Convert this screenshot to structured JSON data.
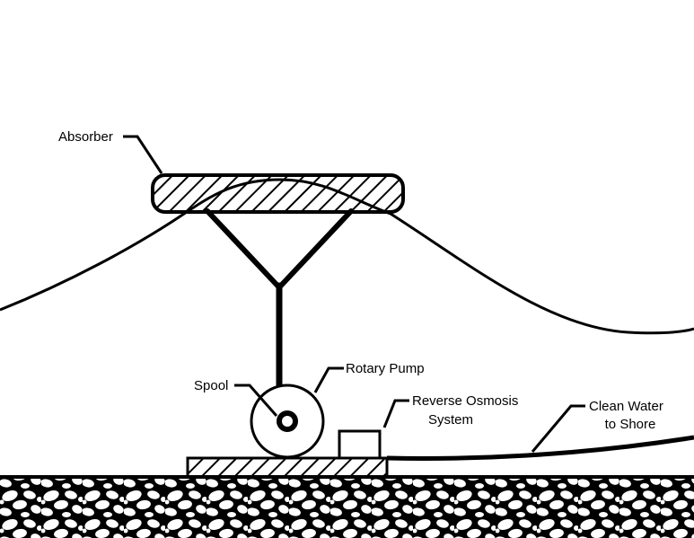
{
  "labels": {
    "absorber": "Absorber",
    "spool": "Spool",
    "rotary_pump": "Rotary Pump",
    "reverse_osmosis_line1": "Reverse Osmosis",
    "reverse_osmosis_line2": "System",
    "clean_water_line1": "Clean Water",
    "clean_water_line2": "to Shore"
  },
  "colors": {
    "stroke": "#000000",
    "background": "#ffffff"
  }
}
